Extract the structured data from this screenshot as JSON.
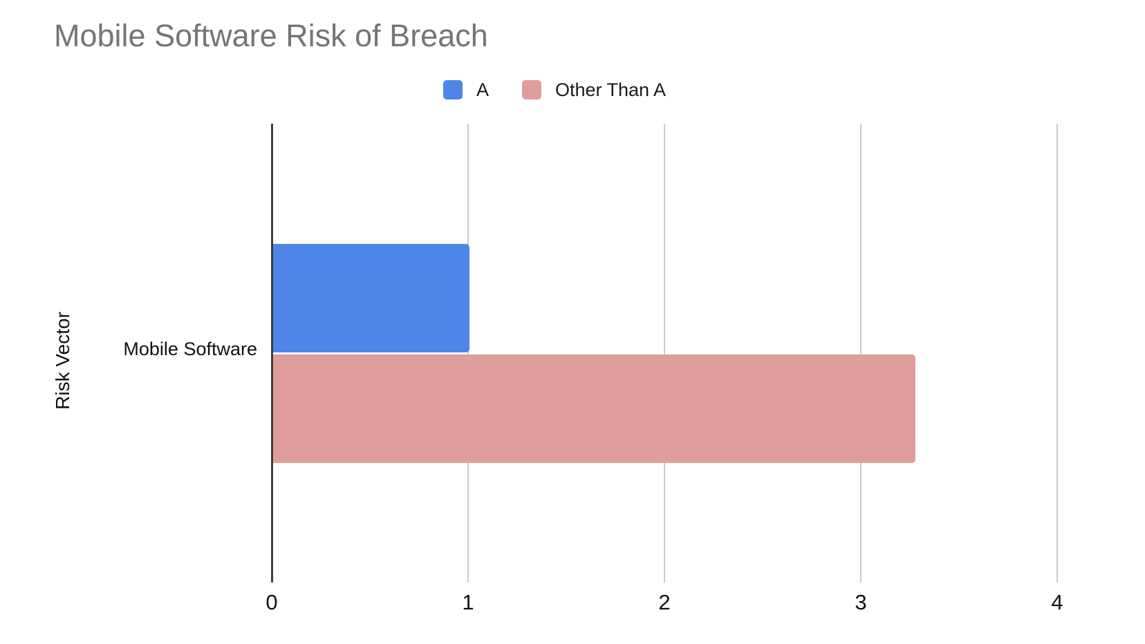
{
  "page": {
    "background": "#ffffff"
  },
  "chart_data": {
    "type": "bar",
    "orientation": "horizontal",
    "title": "Mobile Software Risk of Breach",
    "title_color": "#757575",
    "xlabel": "",
    "ylabel": "Risk Vector",
    "categories": [
      "Mobile Software"
    ],
    "series": [
      {
        "name": "A",
        "values": [
          1
        ],
        "color": "#4f85e8"
      },
      {
        "name": "Other Than A",
        "values": [
          3.27
        ],
        "color": "#df9d9b"
      }
    ],
    "xlim": [
      0,
      4
    ],
    "x_ticks": [
      0,
      1,
      2,
      3,
      4
    ],
    "grid": true,
    "legend_position": "top-center",
    "axis_line_color": "#3c3c3c",
    "gridline_color": "#cccccc",
    "tick_text_color": "#111111"
  }
}
